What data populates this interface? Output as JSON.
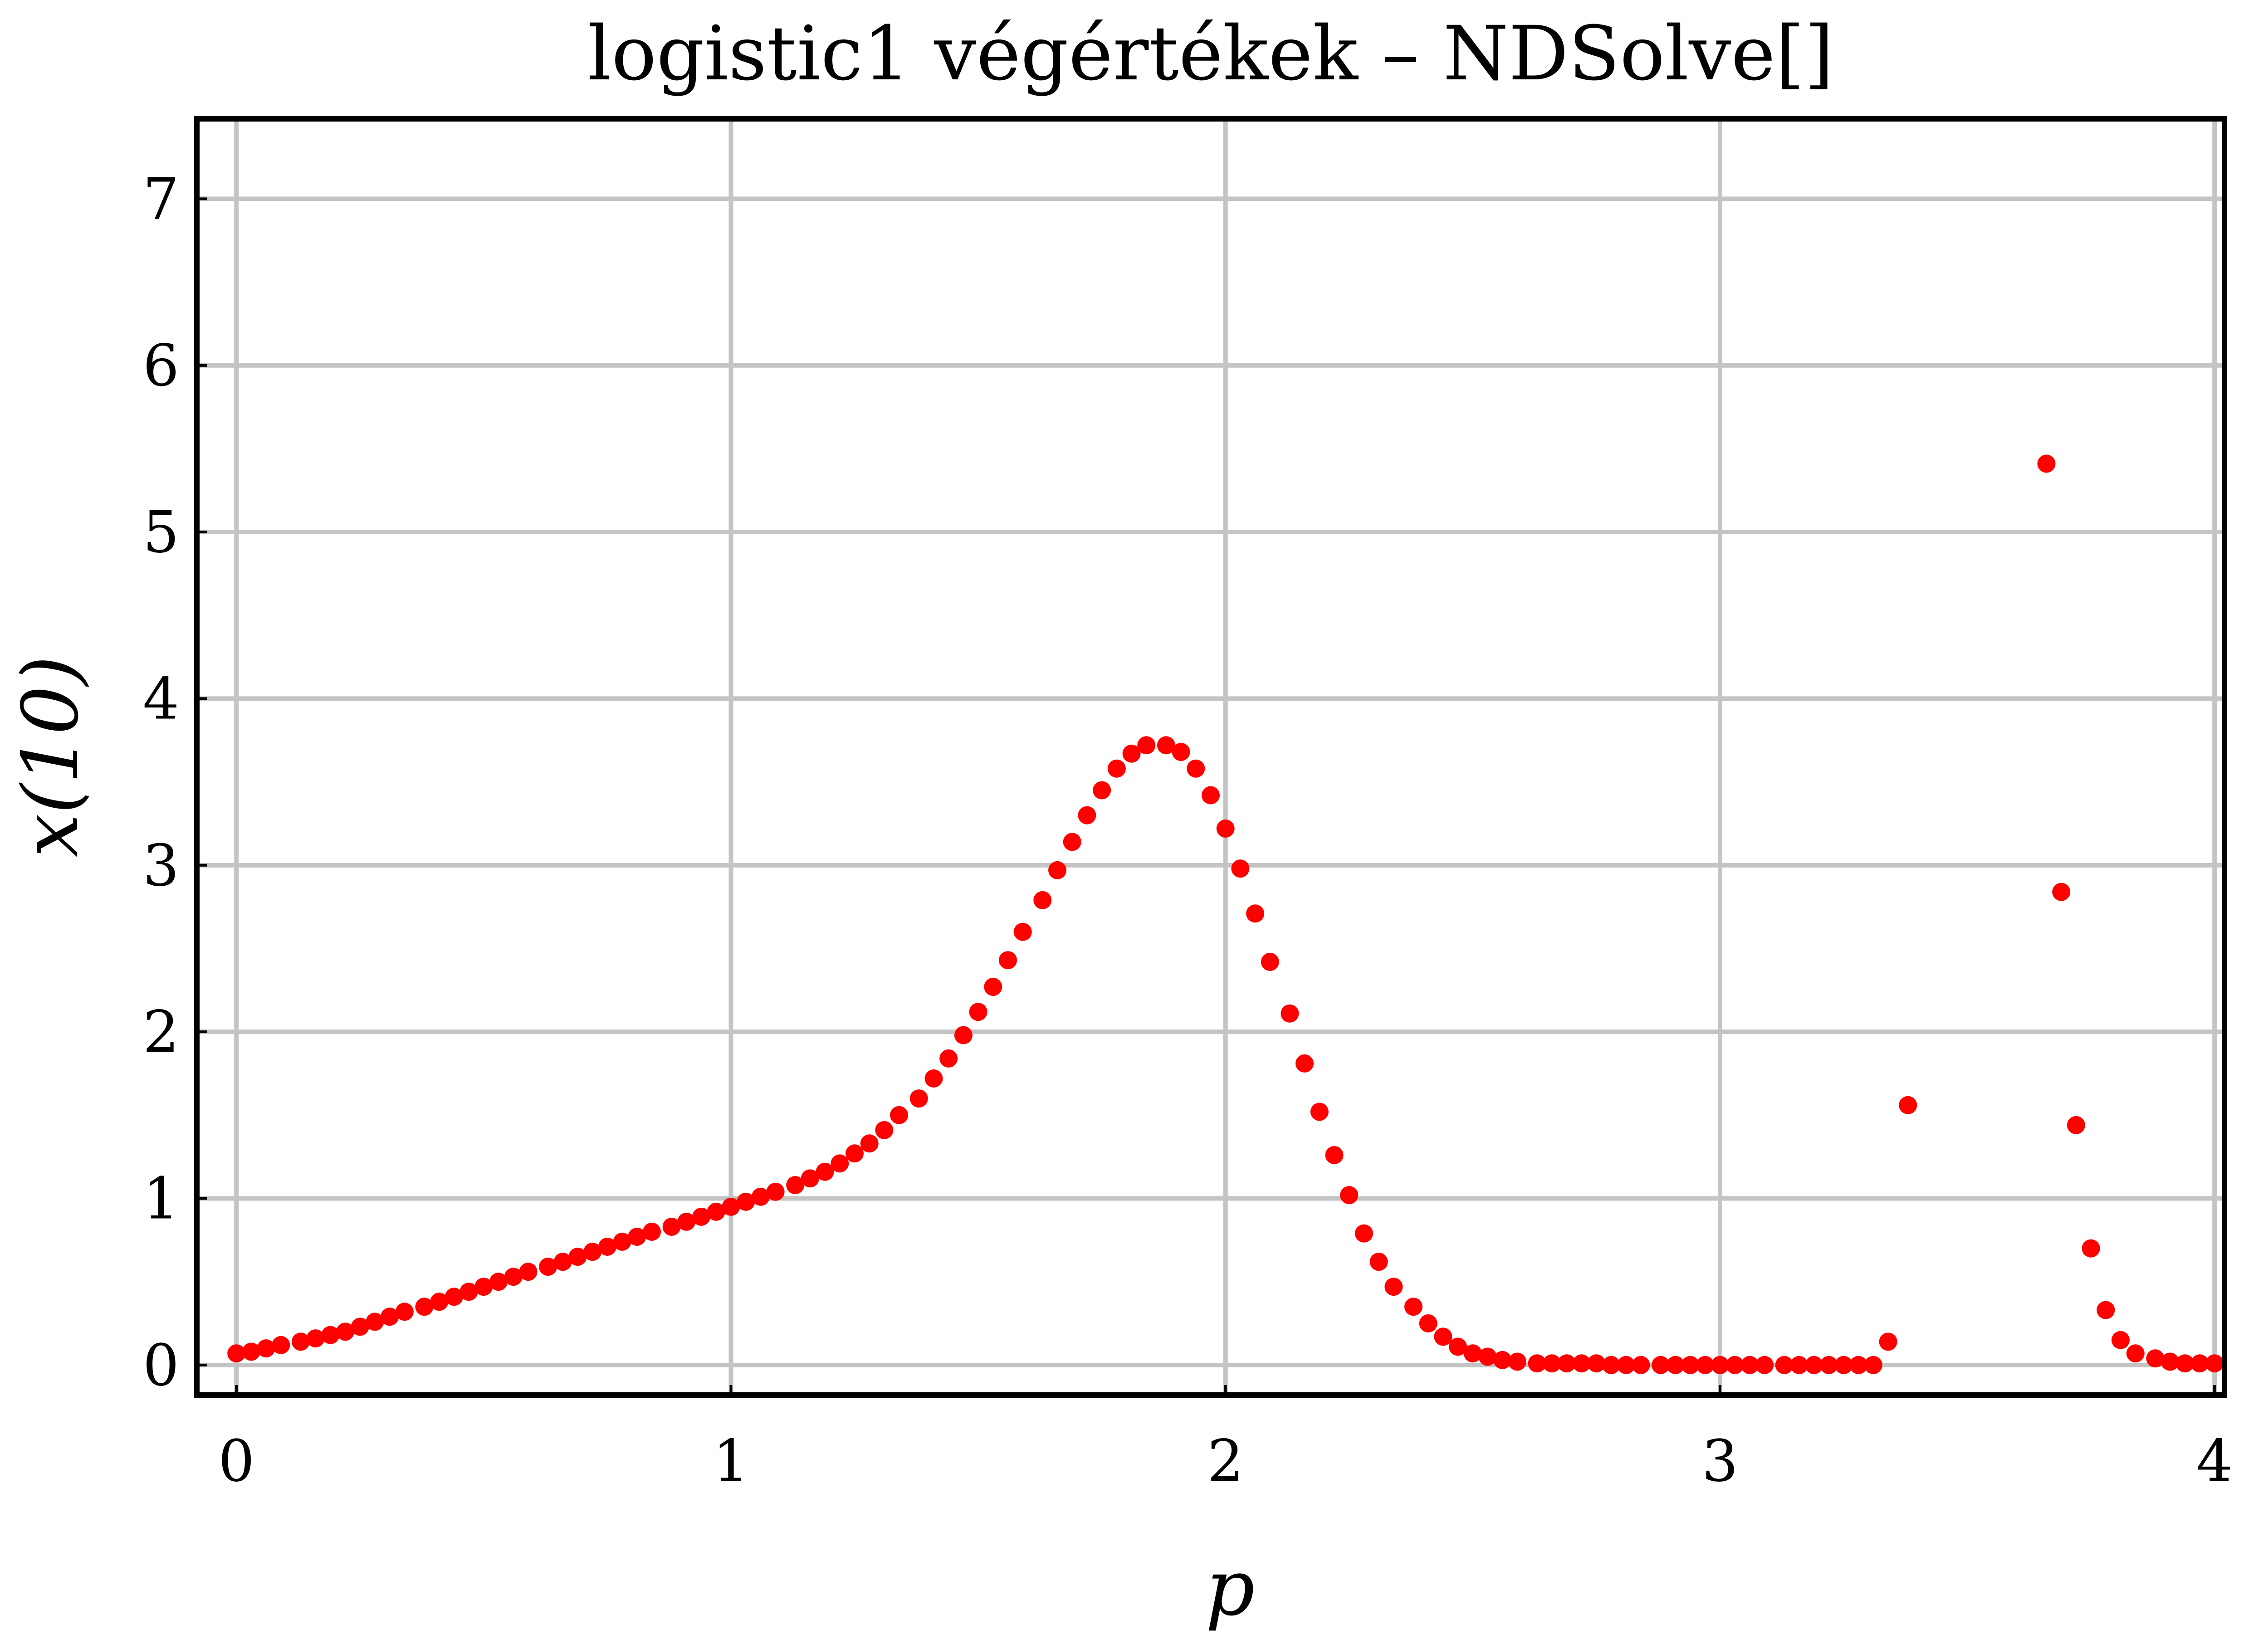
{
  "chart_data": {
    "type": "scatter",
    "title": "logistic1 végértékek – NDSolve[]",
    "xlabel": "p",
    "ylabel": "x(10)",
    "xlim": [
      -0.08,
      4.02
    ],
    "ylim": [
      -0.18,
      7.48
    ],
    "xticks": [
      "0",
      "1",
      "2",
      "3",
      "4"
    ],
    "yticks": [
      "0",
      "1",
      "2",
      "3",
      "4",
      "5",
      "6",
      "7"
    ],
    "grid": true,
    "marker_color": "#ff0000",
    "series": [
      {
        "x": [
          0.0,
          0.03,
          0.06,
          0.09,
          0.13,
          0.16,
          0.19,
          0.22,
          0.25,
          0.28,
          0.31,
          0.34,
          0.38,
          0.41,
          0.44,
          0.47,
          0.5,
          0.53,
          0.56,
          0.59,
          0.63,
          0.66,
          0.69,
          0.72,
          0.75,
          0.78,
          0.81,
          0.84,
          0.88,
          0.91,
          0.94,
          0.97,
          1.0,
          1.03,
          1.06,
          1.09,
          1.13,
          1.16,
          1.19,
          1.22,
          1.25,
          1.28,
          1.31,
          1.34,
          1.38,
          1.41,
          1.44,
          1.47,
          1.5,
          1.53,
          1.56,
          1.59,
          1.63,
          1.66,
          1.69,
          1.72,
          1.75,
          1.78,
          1.81,
          1.84,
          1.88,
          1.91,
          1.94,
          1.97,
          2.0,
          2.03,
          2.06,
          2.09,
          2.13,
          2.16,
          2.19,
          2.22,
          2.25,
          2.28,
          2.31,
          2.34,
          2.38,
          2.41,
          2.44,
          2.47,
          2.5,
          2.53,
          2.56,
          2.59,
          2.63,
          2.66,
          2.69,
          2.72,
          2.75,
          2.78,
          2.81,
          2.84,
          2.88,
          2.91,
          2.94,
          2.97,
          3.0,
          3.03,
          3.06,
          3.09,
          3.13,
          3.16,
          3.19,
          3.22,
          3.25,
          3.28,
          3.31,
          3.34,
          3.38,
          3.66,
          3.69,
          3.72,
          3.75,
          3.78,
          3.81,
          3.84,
          3.88,
          3.91,
          3.94,
          3.97,
          4.0
        ],
        "values": [
          0.07,
          0.08,
          0.1,
          0.12,
          0.14,
          0.16,
          0.18,
          0.2,
          0.23,
          0.26,
          0.29,
          0.32,
          0.35,
          0.38,
          0.41,
          0.44,
          0.47,
          0.5,
          0.53,
          0.56,
          0.59,
          0.62,
          0.65,
          0.68,
          0.71,
          0.74,
          0.77,
          0.8,
          0.83,
          0.86,
          0.89,
          0.92,
          0.95,
          0.98,
          1.01,
          1.04,
          1.08,
          1.12,
          1.16,
          1.21,
          1.27,
          1.33,
          1.41,
          1.5,
          1.6,
          1.72,
          1.84,
          1.98,
          2.12,
          2.27,
          2.43,
          2.6,
          2.79,
          2.97,
          3.14,
          3.3,
          3.45,
          3.58,
          3.67,
          3.72,
          3.72,
          3.68,
          3.58,
          3.42,
          3.22,
          2.98,
          2.71,
          2.42,
          2.11,
          1.81,
          1.52,
          1.26,
          1.02,
          0.79,
          0.62,
          0.47,
          0.35,
          0.25,
          0.17,
          0.11,
          0.07,
          0.05,
          0.03,
          0.02,
          0.01,
          0.01,
          0.01,
          0.01,
          0.01,
          0.0,
          0.0,
          0.0,
          0.0,
          0.0,
          0.0,
          0.0,
          0.0,
          0.0,
          0.0,
          0.0,
          0.0,
          0.0,
          0.0,
          0.0,
          0.0,
          0.0,
          0.0,
          0.14,
          1.56,
          5.41,
          2.84,
          1.44,
          0.7,
          0.33,
          0.15,
          0.07,
          0.04,
          0.02,
          0.01,
          0.01,
          0.01
        ]
      }
    ]
  }
}
